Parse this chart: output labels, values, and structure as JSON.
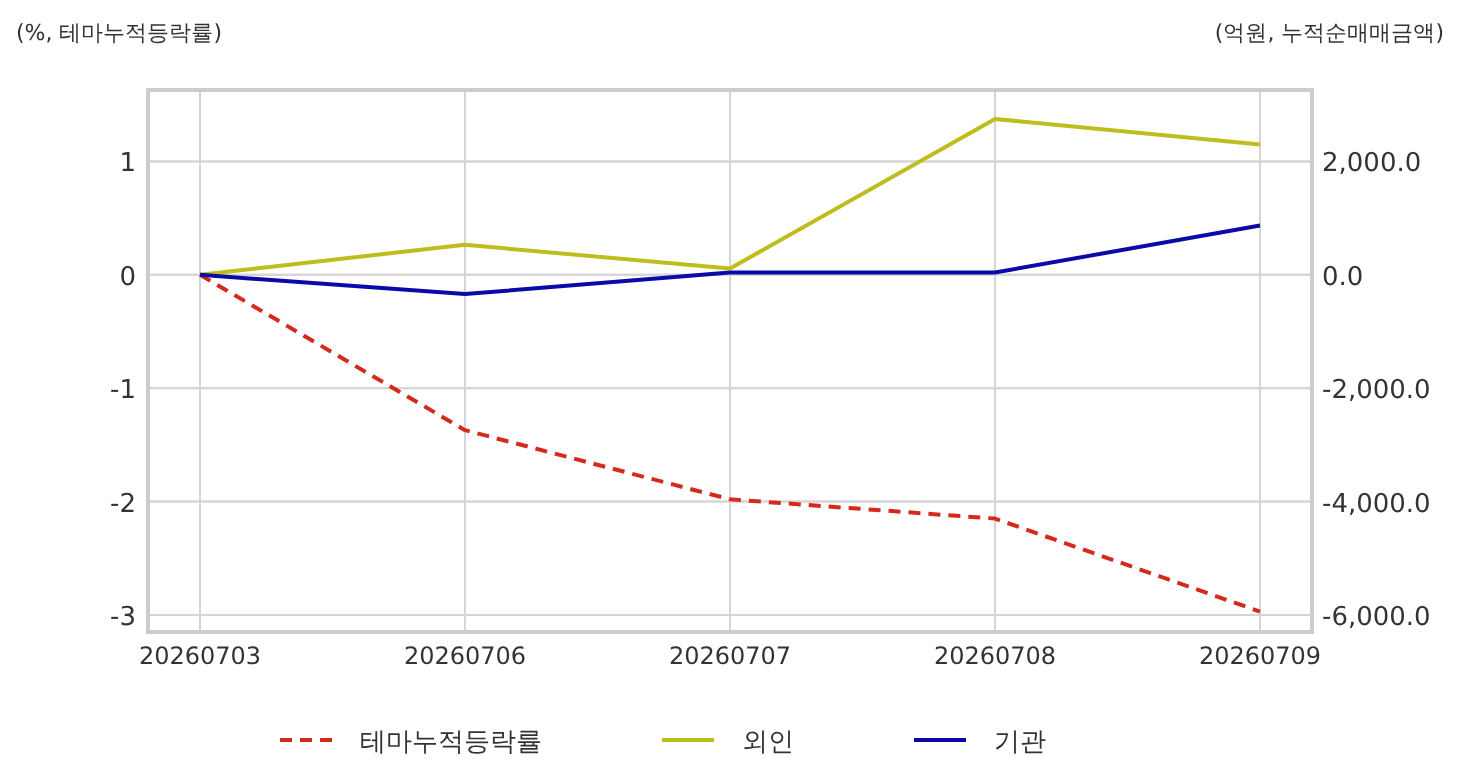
{
  "chart_data": {
    "type": "line",
    "ylabel": "(%, 테마누적등락률)",
    "y2label": "(억원, 누적순매매금액)",
    "categories": [
      "20260703",
      "20260706",
      "20260707",
      "20260708",
      "20260709"
    ],
    "series": [
      {
        "name": "테마누적등락률",
        "color": "#d42a1e",
        "line_style": "dashed",
        "axis": "y",
        "values": [
          0,
          -1.37,
          -1.98,
          -2.15,
          -2.97
        ]
      },
      {
        "name": "외인",
        "color": "#bdbd1e",
        "line_style": "solid",
        "axis": "y2",
        "values": [
          0,
          530,
          110,
          2750,
          2300
        ]
      },
      {
        "name": "기관",
        "color": "#0a0aa8",
        "line_style": "solid",
        "axis": "y2",
        "values": [
          0,
          -340,
          40,
          40,
          870
        ]
      }
    ],
    "ylim": [
      -3.15,
      1.63
    ],
    "yticks": [
      -3,
      -2,
      -1,
      0,
      1
    ],
    "y2lim": [
      -6300,
      3260
    ],
    "y2ticks": [
      {
        "value": -6000,
        "label": "-6,000.0"
      },
      {
        "value": -4000,
        "label": "-4,000.0"
      },
      {
        "value": -2000,
        "label": "-2,000.0"
      },
      {
        "value": 0,
        "label": "0.0"
      },
      {
        "value": 2000,
        "label": "2,000.0"
      }
    ],
    "grid": true,
    "legend": "bottom"
  }
}
